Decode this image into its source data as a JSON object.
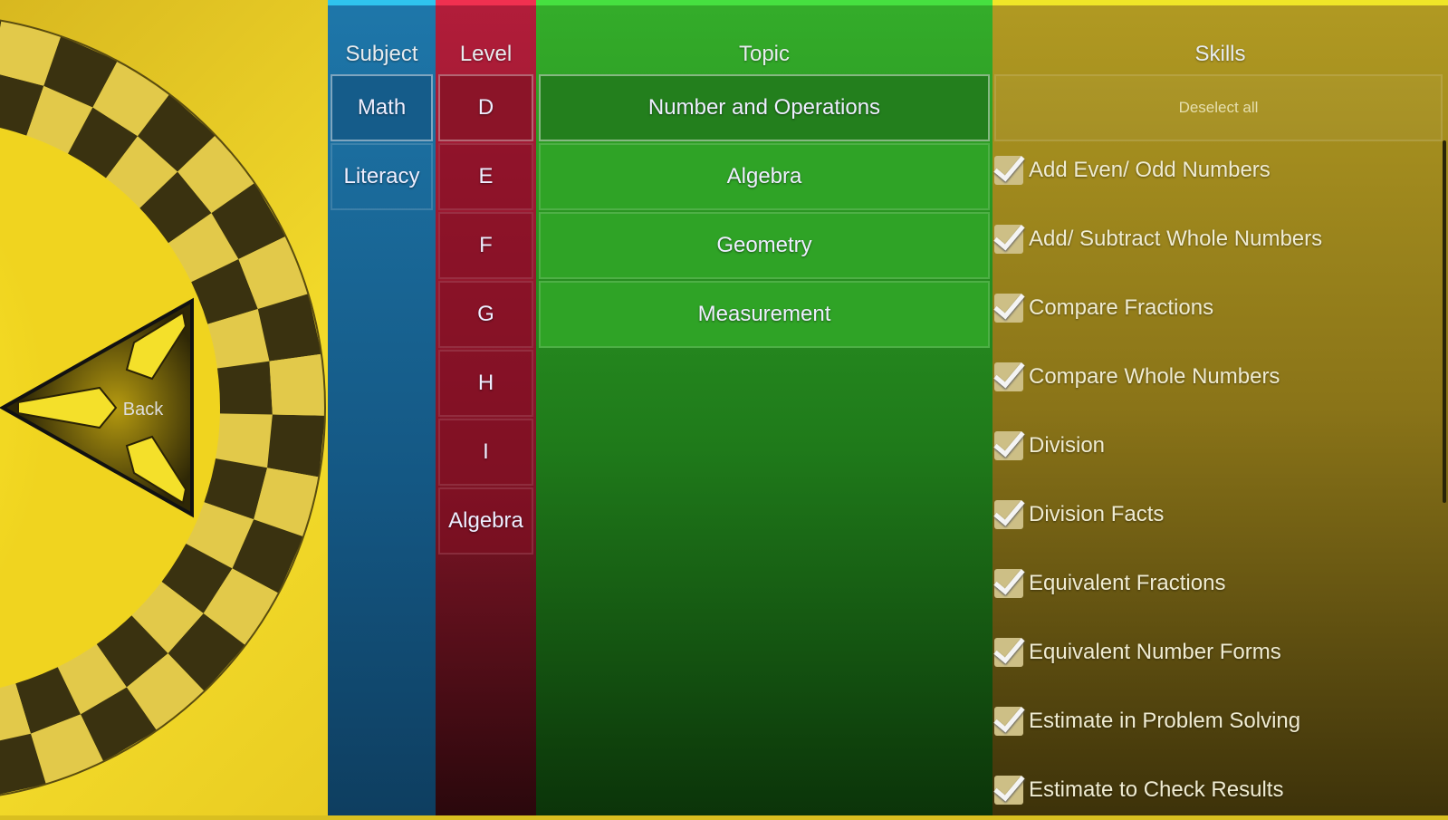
{
  "back_button": {
    "label": "Back"
  },
  "subject": {
    "header": "Subject",
    "items": [
      {
        "label": "Math",
        "selected": true
      },
      {
        "label": "Literacy",
        "selected": false
      }
    ],
    "color": "#1e77aa"
  },
  "level": {
    "header": "Level",
    "items": [
      {
        "label": "D",
        "selected": true
      },
      {
        "label": "E"
      },
      {
        "label": "F"
      },
      {
        "label": "G"
      },
      {
        "label": "H"
      },
      {
        "label": "I"
      },
      {
        "label": "Algebra"
      }
    ],
    "color": "#b21d3a"
  },
  "topic": {
    "header": "Topic",
    "items": [
      {
        "label": "Number and Operations",
        "selected": true
      },
      {
        "label": "Algebra"
      },
      {
        "label": "Geometry"
      },
      {
        "label": "Measurement"
      }
    ],
    "color": "#34ad2a"
  },
  "skills": {
    "header": "Skills",
    "deselect_label": "Deselect all",
    "color": "#b19a22",
    "items": [
      {
        "label": "Add Even/ Odd Numbers",
        "checked": true
      },
      {
        "label": "Add/ Subtract Whole Numbers",
        "checked": true
      },
      {
        "label": "Compare Fractions",
        "checked": true
      },
      {
        "label": "Compare Whole Numbers",
        "checked": true
      },
      {
        "label": "Division",
        "checked": true
      },
      {
        "label": "Division Facts",
        "checked": true
      },
      {
        "label": "Equivalent Fractions",
        "checked": true
      },
      {
        "label": "Equivalent Number Forms",
        "checked": true
      },
      {
        "label": "Estimate in Problem Solving",
        "checked": true
      },
      {
        "label": "Estimate to Check Results",
        "checked": true
      }
    ]
  }
}
